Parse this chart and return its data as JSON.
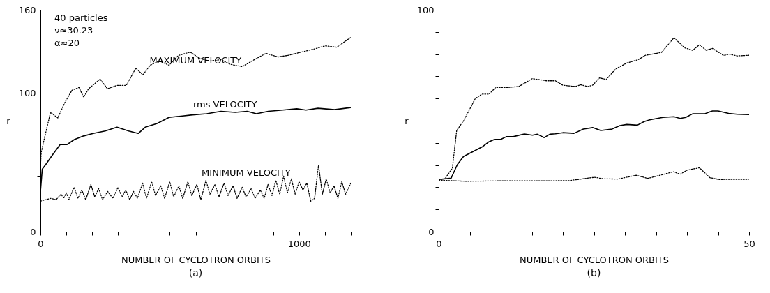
{
  "chart_data": [
    {
      "type": "line",
      "title": "(a)",
      "xlabel": "NUMBER OF CYCLOTRON ORBITS",
      "ylabel": "r",
      "xlim": [
        0,
        1200
      ],
      "ylim": [
        0,
        160
      ],
      "xticks": [
        0,
        {
          "value": 100,
          "label": null
        },
        {
          "value": 200,
          "label": null
        },
        {
          "value": 300,
          "label": null
        },
        {
          "value": 400,
          "label": null
        },
        {
          "value": 500,
          "label": null
        },
        {
          "value": 600,
          "label": null
        },
        {
          "value": 700,
          "label": null
        },
        {
          "value": 800,
          "label": null
        },
        {
          "value": 900,
          "label": null
        },
        1000,
        {
          "value": 1100,
          "label": null
        },
        {
          "value": 1200,
          "label": null
        }
      ],
      "yticks": [
        0,
        {
          "value": 20,
          "label": null
        },
        {
          "value": 40,
          "label": null
        },
        {
          "value": 60,
          "label": null
        },
        {
          "value": 80,
          "label": null
        },
        100,
        {
          "value": 120,
          "label": null
        },
        {
          "value": 140,
          "label": null
        },
        160
      ],
      "annotations": [
        "40 particles",
        "ν≈30.23",
        "α≈20",
        {
          "text": "MAXIMUM VELOCITY",
          "x": 780,
          "y": 119
        },
        {
          "text": "rms VELOCITY",
          "x": 840,
          "y": 87.7
        },
        {
          "text": "MINIMUM VELOCITY",
          "x": 970,
          "y": 38
        }
      ],
      "series": [
        {
          "color": "#000000",
          "line_style": "dotted",
          "x": [
            0,
            3,
            16,
            39,
            67,
            94,
            122,
            149,
            167,
            186,
            231,
            259,
            296,
            332,
            369,
            396,
            424,
            460,
            497,
            533,
            579,
            616,
            652,
            698,
            735,
            780,
            817,
            872,
            918,
            954,
            1009,
            1064,
            1101,
            1146,
            1199
          ],
          "values": [
            47,
            57,
            68,
            86,
            82,
            93,
            102,
            104,
            97,
            103,
            110,
            103,
            105.5,
            105.5,
            118,
            113,
            120,
            123,
            120,
            127,
            129.5,
            125,
            123,
            124,
            120.6,
            119,
            123,
            128.6,
            126,
            127,
            129.5,
            132,
            134,
            133,
            140
          ]
        },
        {
          "color": "#000000",
          "line_style": "solid",
          "x": [
            0,
            7,
            21,
            48,
            76,
            103,
            131,
            167,
            204,
            250,
            296,
            341,
            378,
            405,
            451,
            497,
            543,
            588,
            643,
            698,
            753,
            799,
            835,
            881,
            936,
            991,
            1027,
            1073,
            1137,
            1199
          ],
          "values": [
            29,
            45,
            48.6,
            55.7,
            62.8,
            62.8,
            66.4,
            69,
            70.8,
            72.6,
            75.3,
            72.6,
            70.8,
            75.3,
            78,
            82.4,
            83.3,
            84.2,
            85,
            86.8,
            86,
            86.8,
            85,
            86.8,
            87.7,
            88.6,
            87.7,
            89,
            88,
            89.5
          ]
        },
        {
          "color": "#000000",
          "line_style": "dotted",
          "x": [
            0,
            20,
            40,
            60,
            80,
            90,
            100,
            110,
            130,
            145,
            160,
            175,
            195,
            210,
            225,
            240,
            260,
            280,
            300,
            315,
            330,
            345,
            360,
            375,
            395,
            410,
            430,
            445,
            465,
            480,
            500,
            515,
            535,
            550,
            570,
            585,
            605,
            620,
            640,
            655,
            675,
            690,
            710,
            725,
            745,
            760,
            780,
            795,
            815,
            830,
            850,
            865,
            880,
            895,
            910,
            925,
            940,
            955,
            970,
            985,
            1000,
            1015,
            1030,
            1045,
            1060,
            1075,
            1090,
            1105,
            1120,
            1135,
            1150,
            1165,
            1180,
            1200
          ],
          "values": [
            22,
            23,
            24,
            23,
            27,
            24,
            28,
            23,
            32,
            24,
            30,
            23,
            34,
            25,
            31,
            23,
            29,
            24,
            32,
            25,
            30,
            23,
            29,
            24,
            35,
            24,
            36,
            26,
            33,
            24,
            36,
            25,
            33,
            24,
            36,
            26,
            34,
            23,
            37,
            27,
            34,
            25,
            35,
            26,
            33,
            24,
            32,
            25,
            31,
            24,
            30,
            24,
            34,
            26,
            37,
            27,
            40,
            28,
            38,
            27,
            36,
            30,
            35,
            22,
            24,
            48,
            27,
            38,
            28,
            33,
            24,
            36,
            27,
            35
          ]
        }
      ]
    },
    {
      "type": "line",
      "title": "(b)",
      "xlabel": "NUMBER OF CYCLOTRON ORBITS",
      "ylabel": "r",
      "xlim": [
        0,
        50
      ],
      "ylim": [
        0,
        100
      ],
      "xticks": [
        0,
        {
          "value": 5,
          "label": null
        },
        {
          "value": 10,
          "label": null
        },
        {
          "value": 15,
          "label": null
        },
        {
          "value": 20,
          "label": null
        },
        {
          "value": 25,
          "label": null
        },
        {
          "value": 30,
          "label": null
        },
        {
          "value": 35,
          "label": null
        },
        {
          "value": 40,
          "label": null
        },
        {
          "value": 45,
          "label": null
        },
        50
      ],
      "yticks": [
        0,
        {
          "value": 10,
          "label": null
        },
        {
          "value": 20,
          "label": null
        },
        {
          "value": 30,
          "label": null
        },
        {
          "value": 40,
          "label": null
        },
        {
          "value": 50,
          "label": null
        },
        {
          "value": 60,
          "label": null
        },
        {
          "value": 70,
          "label": null
        },
        {
          "value": 80,
          "label": null
        },
        {
          "value": 90,
          "label": null
        },
        100
      ],
      "series": [
        {
          "color": "#000000",
          "line_style": "dotted",
          "x": [
            0,
            1,
            2.2,
            2.9,
            4,
            5.9,
            7,
            8.1,
            9.2,
            11,
            12.9,
            15.1,
            17.4,
            18.8,
            20,
            22,
            22.9,
            24,
            24.8,
            25.9,
            27,
            28.5,
            30.3,
            32.2,
            33.3,
            35.9,
            37.9,
            39.6,
            40.9,
            42,
            43.1,
            44.1,
            45.9,
            46.8,
            48.1,
            50
          ],
          "values": [
            23.5,
            23.8,
            28.6,
            45.6,
            49.9,
            60,
            62,
            62,
            65,
            65,
            65.4,
            69,
            68,
            68,
            66,
            65.4,
            66.2,
            65.4,
            66,
            69.3,
            68.6,
            73.3,
            76,
            77.6,
            79.5,
            80.8,
            87.4,
            82.9,
            81.7,
            84.2,
            81.7,
            82.6,
            79.4,
            80,
            79.2,
            79.5
          ]
        },
        {
          "color": "#000000",
          "line_style": "solid",
          "x": [
            0,
            2,
            3,
            4,
            7,
            8.1,
            9,
            10,
            10.9,
            12,
            13.8,
            15.1,
            15.9,
            17,
            17.9,
            18.8,
            20,
            21.8,
            23.3,
            24.8,
            26.1,
            27.9,
            29.2,
            30.3,
            32,
            33.1,
            34,
            36.1,
            37.9,
            38.9,
            39.8,
            40.9,
            42.8,
            44.1,
            45,
            46.7,
            48.1,
            50
          ],
          "values": [
            23.5,
            24.1,
            30.2,
            33.9,
            38.2,
            40.5,
            41.6,
            41.6,
            42.8,
            42.8,
            44,
            43.5,
            43.9,
            42.4,
            43.9,
            44.1,
            44.6,
            44.3,
            46.2,
            46.9,
            45.6,
            46.2,
            47.8,
            48.3,
            48,
            49.6,
            50.4,
            51.5,
            51.8,
            51,
            51.5,
            53.1,
            53.1,
            54.4,
            54.4,
            53.3,
            52.9,
            52.8
          ]
        },
        {
          "color": "#000000",
          "line_style": "dotted",
          "x": [
            0,
            4.4,
            10.3,
            17,
            21,
            25.1,
            26.6,
            28.9,
            31.8,
            33.7,
            37.8,
            38.9,
            40,
            42,
            43.7,
            45.2,
            50
          ],
          "values": [
            23.2,
            22.7,
            22.9,
            22.9,
            23,
            24.5,
            23.8,
            23.7,
            25.4,
            24,
            27,
            25.9,
            27.7,
            28.8,
            24.3,
            23.5,
            23.6
          ]
        }
      ]
    }
  ]
}
